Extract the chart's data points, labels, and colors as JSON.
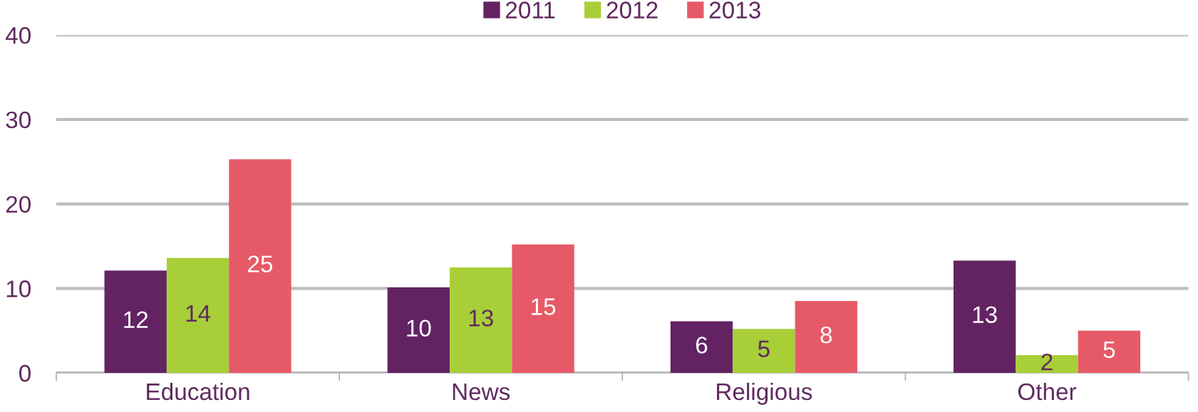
{
  "chart_data": {
    "type": "bar",
    "categories": [
      "Education",
      "News",
      "Religious",
      "Other"
    ],
    "series": [
      {
        "name": "2011",
        "color": "#632363",
        "values": [
          12.1,
          10.1,
          6.1,
          13.3
        ],
        "value_labels": [
          "12",
          "10",
          "6",
          "13"
        ]
      },
      {
        "name": "2012",
        "color": "#a8cf38",
        "values": [
          13.6,
          12.5,
          5.2,
          2.1
        ],
        "value_labels": [
          "14",
          "13",
          "5",
          "2"
        ]
      },
      {
        "name": "2013",
        "color": "#e65a68",
        "values": [
          25.3,
          15.2,
          8.5,
          5.0
        ],
        "value_labels": [
          "25",
          "15",
          "8",
          "5"
        ]
      }
    ],
    "ylim": [
      0,
      40
    ],
    "yticks": [
      0,
      10,
      20,
      30,
      40
    ],
    "grid": "y",
    "legend": "top"
  }
}
